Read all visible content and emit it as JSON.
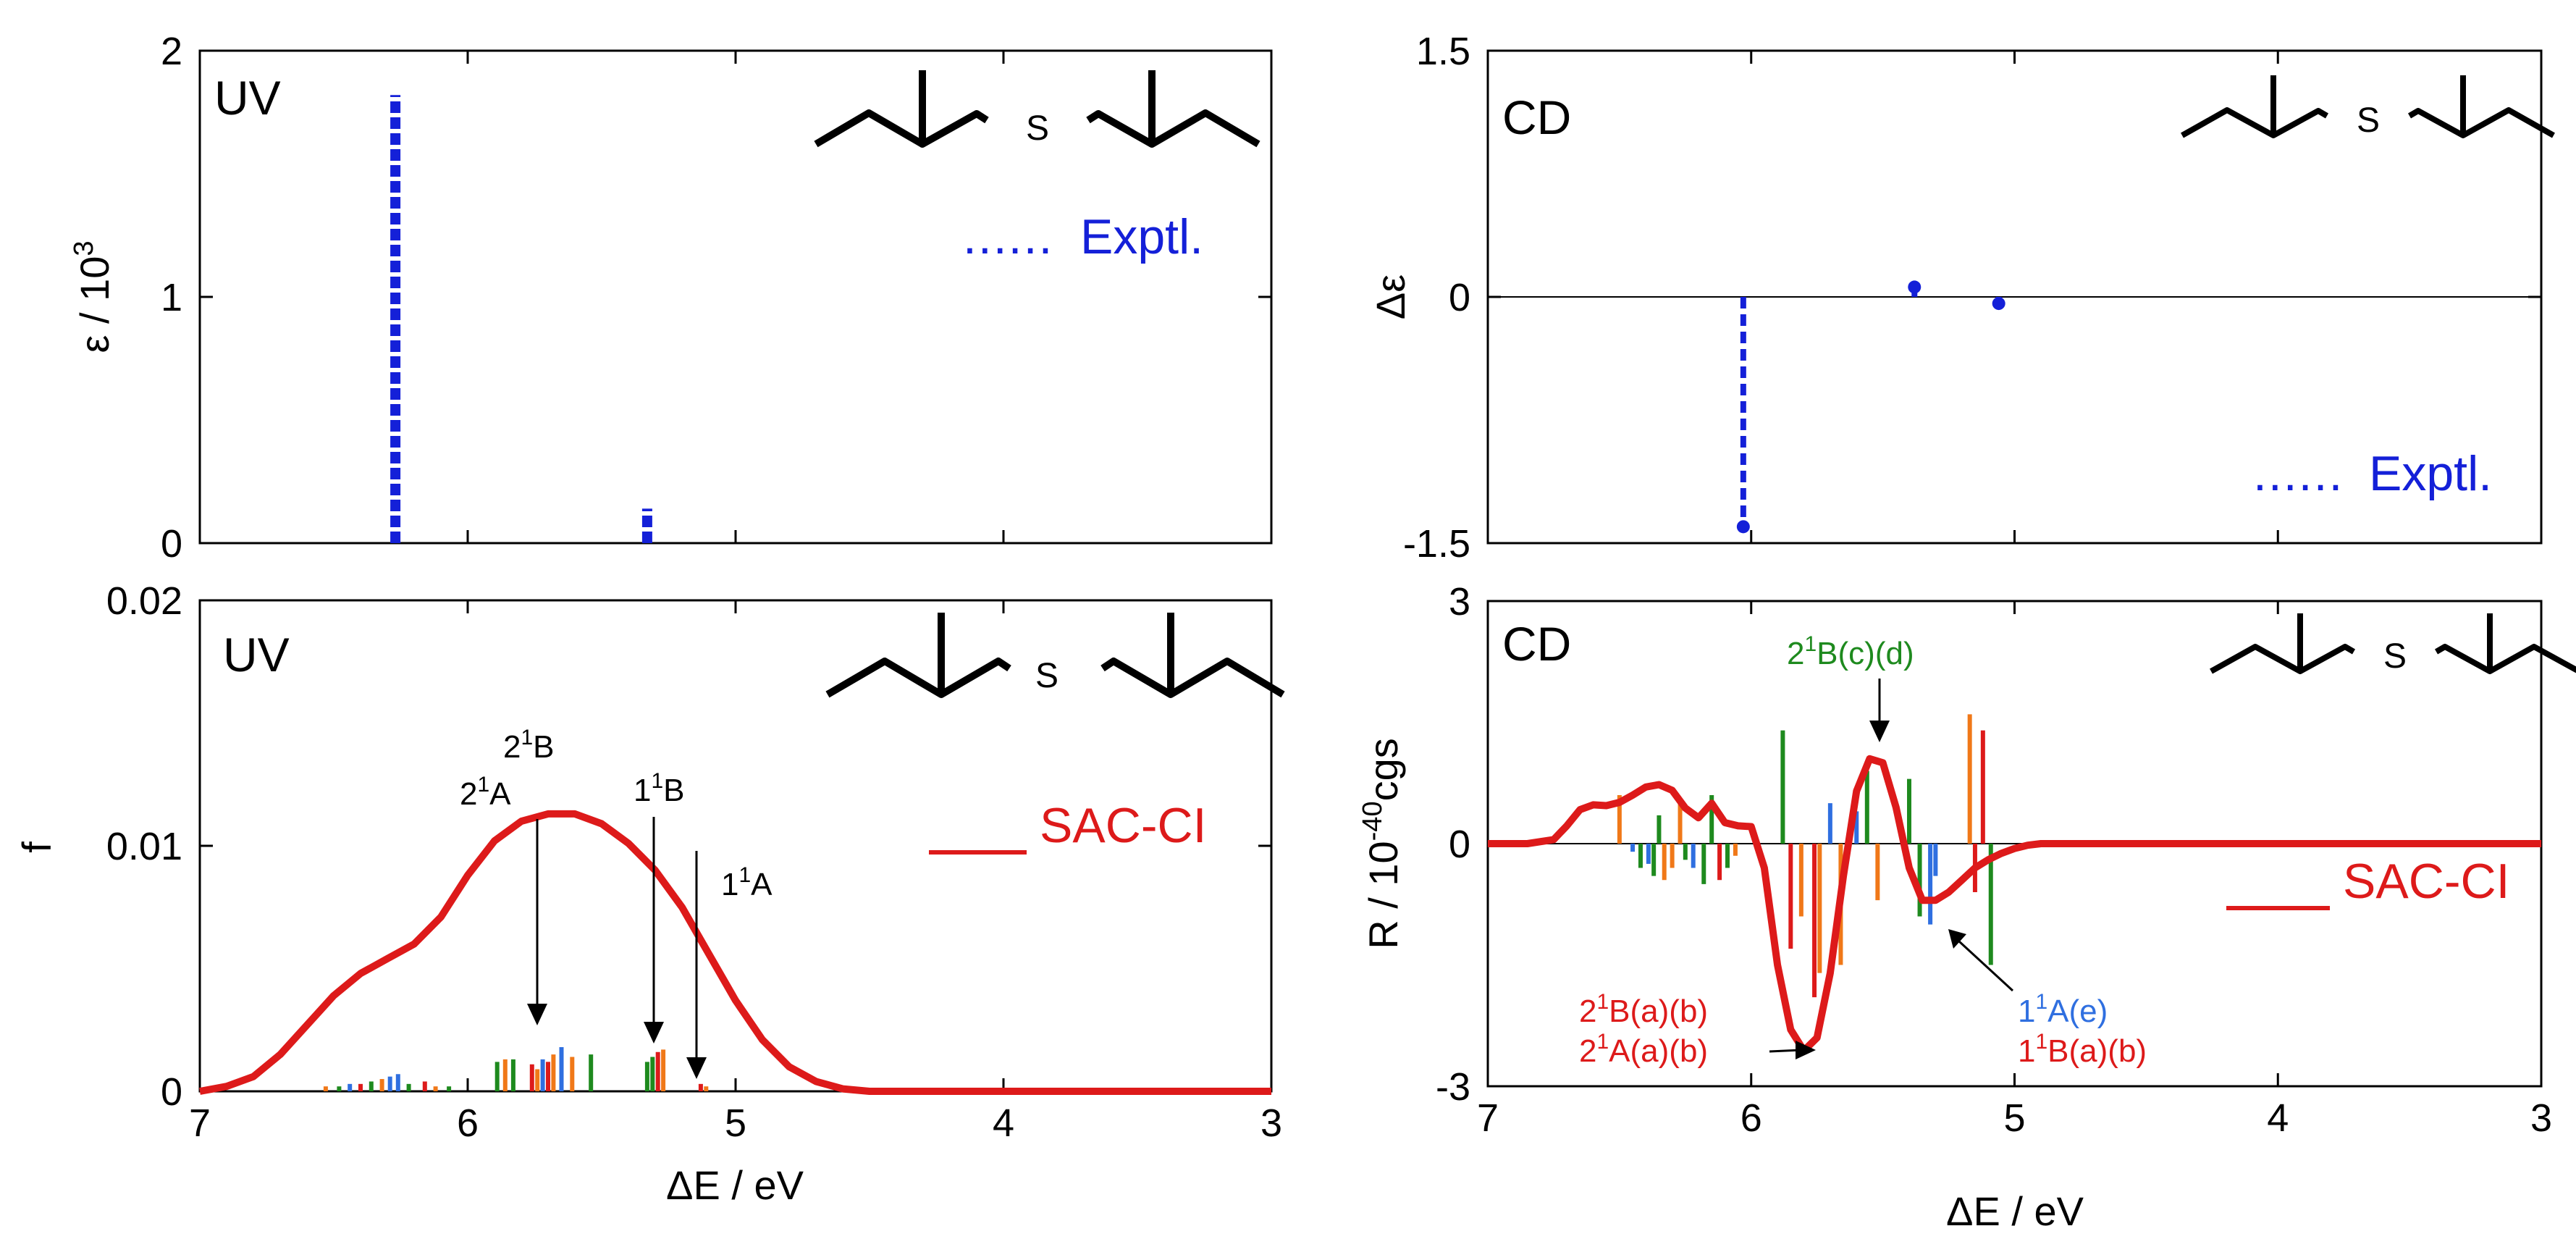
{
  "colors": {
    "expt": "#1420d8",
    "sacci": "#dd1a1a",
    "stick_green": "#1e8a1e",
    "stick_orange": "#f07818",
    "stick_blue": "#2f6fe0",
    "stick_red": "#dd1a1a",
    "annot_green": "#1e8a1e",
    "annot_blue": "#2f6fe0",
    "annot_red": "#dd1a1a"
  },
  "chart_data": [
    {
      "id": "uv-expt",
      "type": "bar",
      "panel_label": "UV",
      "xlabel": "",
      "ylabel_main": "ε / 10",
      "ylabel_sup": "3",
      "xlim": [
        7,
        3
      ],
      "ylim": [
        0,
        2
      ],
      "x_ticks": [
        7,
        6,
        5,
        4,
        3
      ],
      "y_ticks": [
        {
          "value": 0,
          "label": "0"
        },
        {
          "value": 1,
          "label": "1"
        },
        {
          "value": 2,
          "label": "2"
        }
      ],
      "legend": {
        "dots": "......",
        "text": "Exptl."
      },
      "bars": [
        {
          "x": 6.27,
          "value": 1.82
        },
        {
          "x": 5.33,
          "value": 0.14
        }
      ]
    },
    {
      "id": "cd-expt",
      "type": "bar",
      "panel_label": "CD",
      "xlabel": "",
      "ylabel_main": "Δε",
      "xlim": [
        7,
        3
      ],
      "ylim": [
        -1.5,
        1.5
      ],
      "x_ticks": [
        7,
        6,
        5,
        4,
        3
      ],
      "y_ticks": [
        {
          "value": 1.5,
          "label": "1.5"
        },
        {
          "value": 0,
          "label": "0"
        },
        {
          "value": -1.5,
          "label": "-1.5"
        }
      ],
      "legend": {
        "dots": "......",
        "text": "Exptl."
      },
      "bars": [
        {
          "x": 6.03,
          "value": -1.4
        },
        {
          "x": 5.38,
          "value": 0.06
        },
        {
          "x": 5.06,
          "value": -0.04
        }
      ]
    },
    {
      "id": "uv-sacci",
      "type": "line",
      "panel_label": "UV",
      "xlabel": "ΔE / eV",
      "ylabel_main": "f",
      "xlim": [
        7,
        3
      ],
      "ylim": [
        0,
        0.02
      ],
      "x_ticks": [
        {
          "value": 7,
          "label": "7"
        },
        {
          "value": 6,
          "label": "6"
        },
        {
          "value": 5,
          "label": "5"
        },
        {
          "value": 4,
          "label": "4"
        },
        {
          "value": 3,
          "label": "3"
        }
      ],
      "y_ticks": [
        {
          "value": 0,
          "label": "0"
        },
        {
          "value": 0.01,
          "label": "0.01"
        },
        {
          "value": 0.02,
          "label": "0.02"
        }
      ],
      "legend": {
        "text": "SAC-CI"
      },
      "curve": {
        "x": [
          7.0,
          6.9,
          6.8,
          6.7,
          6.6,
          6.5,
          6.4,
          6.3,
          6.2,
          6.1,
          6.0,
          5.9,
          5.8,
          5.7,
          5.6,
          5.5,
          5.4,
          5.3,
          5.2,
          5.1,
          5.0,
          4.9,
          4.8,
          4.7,
          4.6,
          4.5,
          4.4,
          3.0
        ],
        "y": [
          0.0,
          0.0002,
          0.0006,
          0.0015,
          0.0027,
          0.0039,
          0.0048,
          0.0054,
          0.006,
          0.0071,
          0.0088,
          0.0102,
          0.011,
          0.0113,
          0.0113,
          0.0109,
          0.0101,
          0.009,
          0.0075,
          0.0056,
          0.0037,
          0.0021,
          0.001,
          0.0004,
          0.0001,
          0.0,
          0.0,
          0.0
        ]
      },
      "sticks": [
        {
          "x": 6.53,
          "value": 0.0002,
          "color": "orange"
        },
        {
          "x": 6.48,
          "value": 0.0002,
          "color": "green"
        },
        {
          "x": 6.44,
          "value": 0.0003,
          "color": "blue"
        },
        {
          "x": 6.4,
          "value": 0.0003,
          "color": "red"
        },
        {
          "x": 6.36,
          "value": 0.0004,
          "color": "green"
        },
        {
          "x": 6.32,
          "value": 0.0005,
          "color": "orange"
        },
        {
          "x": 6.29,
          "value": 0.0006,
          "color": "blue"
        },
        {
          "x": 6.26,
          "value": 0.0007,
          "color": "blue"
        },
        {
          "x": 6.22,
          "value": 0.0003,
          "color": "green"
        },
        {
          "x": 6.16,
          "value": 0.0004,
          "color": "red"
        },
        {
          "x": 6.12,
          "value": 0.0002,
          "color": "orange"
        },
        {
          "x": 6.07,
          "value": 0.0002,
          "color": "green"
        },
        {
          "x": 5.89,
          "value": 0.0012,
          "color": "green"
        },
        {
          "x": 5.86,
          "value": 0.0013,
          "color": "orange"
        },
        {
          "x": 5.83,
          "value": 0.0013,
          "color": "green"
        },
        {
          "x": 5.76,
          "value": 0.0011,
          "color": "red"
        },
        {
          "x": 5.74,
          "value": 0.0009,
          "color": "orange"
        },
        {
          "x": 5.72,
          "value": 0.0013,
          "color": "blue"
        },
        {
          "x": 5.7,
          "value": 0.0012,
          "color": "red"
        },
        {
          "x": 5.68,
          "value": 0.0015,
          "color": "orange"
        },
        {
          "x": 5.65,
          "value": 0.0018,
          "color": "blue"
        },
        {
          "x": 5.61,
          "value": 0.0014,
          "color": "orange"
        },
        {
          "x": 5.54,
          "value": 0.0015,
          "color": "green"
        },
        {
          "x": 5.33,
          "value": 0.0012,
          "color": "green"
        },
        {
          "x": 5.31,
          "value": 0.0014,
          "color": "green"
        },
        {
          "x": 5.29,
          "value": 0.0016,
          "color": "red"
        },
        {
          "x": 5.27,
          "value": 0.0017,
          "color": "orange"
        },
        {
          "x": 5.13,
          "value": 0.0003,
          "color": "red"
        },
        {
          "x": 5.11,
          "value": 0.0002,
          "color": "orange"
        }
      ],
      "annotations": [
        {
          "main": "2",
          "sup": "1",
          "rest": "B"
        },
        {
          "main": "2",
          "sup": "1",
          "rest": "A"
        },
        {
          "main": "1",
          "sup": "1",
          "rest": "B"
        },
        {
          "main": "1",
          "sup": "1",
          "rest": "A"
        }
      ]
    },
    {
      "id": "cd-sacci",
      "type": "line",
      "panel_label": "CD",
      "xlabel": "ΔE / eV",
      "ylabel_main": "R / 10",
      "ylabel_sup": "-40",
      "ylabel_tail": "cgs",
      "xlim": [
        7,
        3
      ],
      "ylim": [
        -3,
        3
      ],
      "x_ticks": [
        {
          "value": 7,
          "label": "7"
        },
        {
          "value": 6,
          "label": "6"
        },
        {
          "value": 5,
          "label": "5"
        },
        {
          "value": 4,
          "label": "4"
        },
        {
          "value": 3,
          "label": "3"
        }
      ],
      "y_ticks": [
        {
          "value": 3,
          "label": "3"
        },
        {
          "value": 0,
          "label": "0"
        },
        {
          "value": -3,
          "label": "-3"
        }
      ],
      "legend": {
        "text": "SAC-CI"
      },
      "curve": {
        "x": [
          7.0,
          6.85,
          6.75,
          6.7,
          6.65,
          6.6,
          6.55,
          6.5,
          6.45,
          6.4,
          6.35,
          6.3,
          6.25,
          6.2,
          6.15,
          6.1,
          6.05,
          6.0,
          5.95,
          5.9,
          5.85,
          5.8,
          5.75,
          5.7,
          5.65,
          5.6,
          5.55,
          5.5,
          5.45,
          5.4,
          5.35,
          5.3,
          5.25,
          5.2,
          5.15,
          5.1,
          5.05,
          5.0,
          4.95,
          4.9,
          4.8,
          3.0
        ],
        "y": [
          0.0,
          0.0,
          0.05,
          0.22,
          0.42,
          0.48,
          0.47,
          0.51,
          0.6,
          0.7,
          0.73,
          0.66,
          0.44,
          0.32,
          0.5,
          0.26,
          0.22,
          0.21,
          -0.3,
          -1.5,
          -2.3,
          -2.56,
          -2.4,
          -1.6,
          -0.4,
          0.65,
          1.05,
          1.0,
          0.45,
          -0.3,
          -0.7,
          -0.7,
          -0.6,
          -0.45,
          -0.3,
          -0.2,
          -0.12,
          -0.06,
          -0.02,
          0.0,
          0.0,
          0.0
        ]
      },
      "sticks": [
        {
          "x": 6.5,
          "value": 0.6,
          "color": "orange"
        },
        {
          "x": 6.45,
          "value": -0.1,
          "color": "blue"
        },
        {
          "x": 6.42,
          "value": -0.3,
          "color": "green"
        },
        {
          "x": 6.39,
          "value": -0.25,
          "color": "blue"
        },
        {
          "x": 6.37,
          "value": -0.4,
          "color": "green"
        },
        {
          "x": 6.35,
          "value": 0.35,
          "color": "green"
        },
        {
          "x": 6.33,
          "value": -0.45,
          "color": "orange"
        },
        {
          "x": 6.3,
          "value": -0.3,
          "color": "orange"
        },
        {
          "x": 6.27,
          "value": 0.55,
          "color": "orange"
        },
        {
          "x": 6.25,
          "value": -0.2,
          "color": "green"
        },
        {
          "x": 6.22,
          "value": -0.3,
          "color": "blue"
        },
        {
          "x": 6.18,
          "value": -0.5,
          "color": "green"
        },
        {
          "x": 6.15,
          "value": 0.6,
          "color": "green"
        },
        {
          "x": 6.12,
          "value": -0.45,
          "color": "red"
        },
        {
          "x": 6.09,
          "value": -0.3,
          "color": "green"
        },
        {
          "x": 6.06,
          "value": -0.15,
          "color": "orange"
        },
        {
          "x": 5.88,
          "value": 1.4,
          "color": "green"
        },
        {
          "x": 5.85,
          "value": -1.3,
          "color": "red"
        },
        {
          "x": 5.81,
          "value": -0.9,
          "color": "orange"
        },
        {
          "x": 5.76,
          "value": -1.9,
          "color": "red"
        },
        {
          "x": 5.74,
          "value": -1.6,
          "color": "orange"
        },
        {
          "x": 5.7,
          "value": 0.5,
          "color": "blue"
        },
        {
          "x": 5.66,
          "value": -1.5,
          "color": "orange"
        },
        {
          "x": 5.6,
          "value": 0.4,
          "color": "blue"
        },
        {
          "x": 5.56,
          "value": 0.9,
          "color": "green"
        },
        {
          "x": 5.52,
          "value": -0.7,
          "color": "orange"
        },
        {
          "x": 5.4,
          "value": 0.8,
          "color": "green"
        },
        {
          "x": 5.36,
          "value": -0.9,
          "color": "green"
        },
        {
          "x": 5.32,
          "value": -1.0,
          "color": "blue"
        },
        {
          "x": 5.3,
          "value": -0.4,
          "color": "blue"
        },
        {
          "x": 5.17,
          "value": 1.6,
          "color": "orange"
        },
        {
          "x": 5.15,
          "value": -0.6,
          "color": "red"
        },
        {
          "x": 5.12,
          "value": 1.4,
          "color": "red"
        },
        {
          "x": 5.09,
          "value": -1.5,
          "color": "green"
        }
      ],
      "annotations": [
        {
          "main": "2",
          "sup": "1",
          "rest": "B(c)(d)"
        },
        {
          "main": "2",
          "sup": "1",
          "rest": "B(a)(b)"
        },
        {
          "main": "2",
          "sup": "1",
          "rest": "A(a)(b)"
        },
        {
          "main": "1",
          "sup": "1",
          "rest": "A(e)"
        },
        {
          "main": "1",
          "sup": "1",
          "rest": "B(a)(b)"
        }
      ]
    }
  ]
}
